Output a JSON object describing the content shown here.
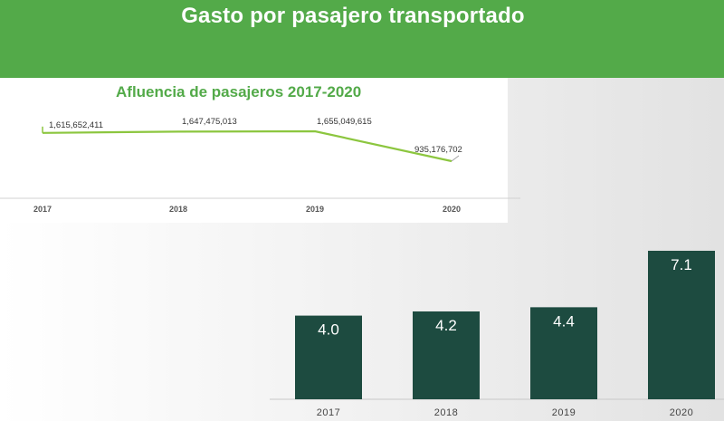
{
  "header": {
    "title": "Gasto por pasajero transportado"
  },
  "chart_data": [
    {
      "type": "line",
      "title": "Afluencia de pasajeros 2017-2020",
      "categories": [
        "2017",
        "2018",
        "2019",
        "2020"
      ],
      "values": [
        1615652411,
        1647475013,
        1655049615,
        935176702
      ],
      "value_labels": [
        "1,615,652,411",
        "1,647,475,013",
        "1,655,049,615",
        "935,176,702"
      ],
      "grid": false,
      "series_color": "#8cc63f"
    },
    {
      "type": "bar",
      "title": "",
      "categories": [
        "2017",
        "2018",
        "2019",
        "2020"
      ],
      "values": [
        4.0,
        4.2,
        4.4,
        7.1
      ],
      "value_labels": [
        "4.0",
        "4.2",
        "4.4",
        "7.1"
      ],
      "grid": false,
      "bar_color": "#1d4b40"
    }
  ]
}
